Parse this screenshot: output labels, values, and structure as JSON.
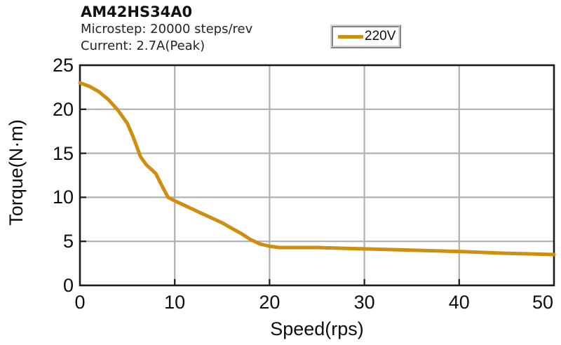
{
  "header": {
    "title": "AM42HS34A0",
    "subtitle": [
      "Microstep: 20000 steps/rev",
      "Current: 2.7A(Peak)"
    ]
  },
  "legend": {
    "label": "220V",
    "swatch_color": "#CE8E10"
  },
  "chart_data": {
    "type": "line",
    "title": "AM42HS34A0",
    "subtitle": [
      "Microstep: 20000 steps/rev",
      "Current: 2.7A(Peak)"
    ],
    "xlabel": "Speed(rps)",
    "ylabel": "Torque(N·m)",
    "xlim": [
      0,
      50
    ],
    "ylim": [
      0,
      25
    ],
    "xticks": [
      0,
      10,
      20,
      30,
      40,
      50
    ],
    "yticks": [
      0,
      5,
      10,
      15,
      20,
      25
    ],
    "grid": true,
    "legend_position": "top-center",
    "colors": {
      "grid": "#b0b0b0",
      "frame": "#1b1b1b",
      "text": "#0d0d0d"
    },
    "series": [
      {
        "name": "220V",
        "color": "#CE8E10",
        "points": [
          [
            0,
            23.0
          ],
          [
            1,
            22.6
          ],
          [
            2,
            22.0
          ],
          [
            3,
            21.1
          ],
          [
            4,
            19.9
          ],
          [
            5,
            18.4
          ],
          [
            5.6,
            16.9
          ],
          [
            6.4,
            14.6
          ],
          [
            7,
            13.7
          ],
          [
            8,
            12.7
          ],
          [
            8.6,
            11.4
          ],
          [
            9.3,
            10.0
          ],
          [
            10,
            9.6
          ],
          [
            11,
            9.1
          ],
          [
            12,
            8.6
          ],
          [
            13,
            8.1
          ],
          [
            14,
            7.6
          ],
          [
            15,
            7.1
          ],
          [
            16,
            6.5
          ],
          [
            17,
            5.9
          ],
          [
            18,
            5.2
          ],
          [
            19,
            4.7
          ],
          [
            20,
            4.45
          ],
          [
            21,
            4.3
          ],
          [
            23,
            4.3
          ],
          [
            25,
            4.3
          ],
          [
            30,
            4.15
          ],
          [
            35,
            4.0
          ],
          [
            40,
            3.85
          ],
          [
            45,
            3.65
          ],
          [
            50,
            3.5
          ]
        ]
      }
    ]
  }
}
